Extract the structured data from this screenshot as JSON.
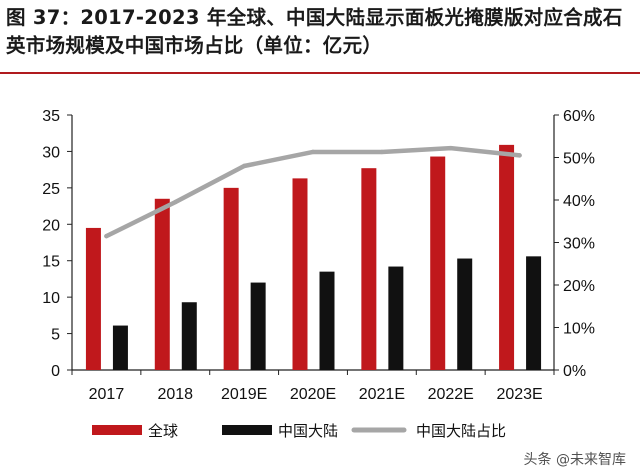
{
  "title": "图 37：2017-2023 年全球、中国大陆显示面板光掩膜版对应合成石英市场规模及中国市场占比（单位：亿元）",
  "watermark": "头条 @未来智库",
  "colors": {
    "global": "#c0181c",
    "china": "#111111",
    "share": "#a6a6a6",
    "accent_rule": "#b01a1e"
  },
  "chart_data": {
    "type": "bar",
    "categories": [
      "2017",
      "2018",
      "2019E",
      "2020E",
      "2021E",
      "2022E",
      "2023E"
    ],
    "series": [
      {
        "name": "全球",
        "kind": "bar",
        "axis": "left",
        "values": [
          19.5,
          23.5,
          25.0,
          26.3,
          27.7,
          29.3,
          30.9
        ]
      },
      {
        "name": "中国大陆",
        "kind": "bar",
        "axis": "left",
        "values": [
          6.1,
          9.3,
          12.0,
          13.5,
          14.2,
          15.3,
          15.6
        ]
      },
      {
        "name": "中国大陆占比",
        "kind": "line",
        "axis": "right",
        "values": [
          31.5,
          39.5,
          48.0,
          51.3,
          51.3,
          52.2,
          50.5
        ]
      }
    ],
    "y_left": {
      "min": 0,
      "max": 35,
      "step": 5,
      "tick_labels": [
        "0",
        "5",
        "10",
        "15",
        "20",
        "25",
        "30",
        "35"
      ]
    },
    "y_right": {
      "min": 0,
      "max": 60,
      "step": 10,
      "tick_labels": [
        "0%",
        "10%",
        "20%",
        "30%",
        "40%",
        "50%",
        "60%"
      ]
    },
    "grid": false,
    "legend_position": "bottom"
  }
}
